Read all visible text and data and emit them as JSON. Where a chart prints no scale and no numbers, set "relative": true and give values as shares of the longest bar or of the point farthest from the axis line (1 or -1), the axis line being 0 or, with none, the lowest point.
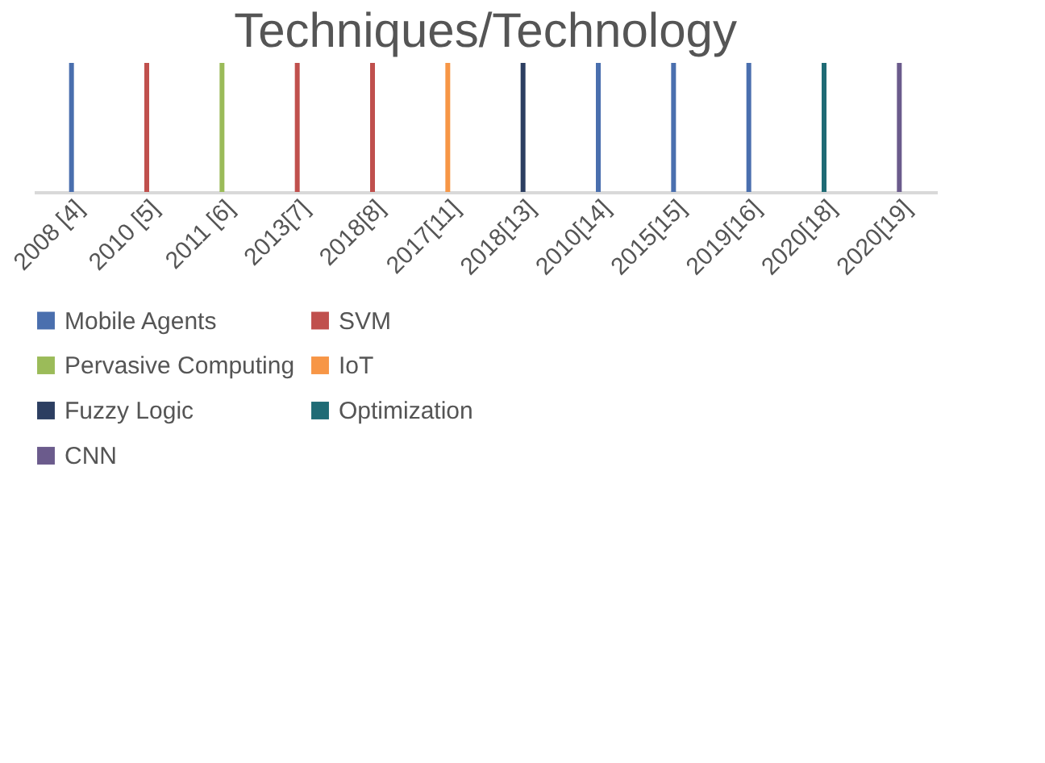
{
  "chart_data": {
    "type": "bar",
    "title": "Techniques/Technology",
    "relative": true,
    "legend": "bottom",
    "categories": [
      "2008 [4]",
      "2010 [5]",
      "2011 [6]",
      "2013[7]",
      "2018[8]",
      "2017[11]",
      "2018[13]",
      "2010[14]",
      "2015[15]",
      "2019[16]",
      "2020[18]",
      "2020[19]"
    ],
    "series": [
      {
        "name": "Mobile Agents",
        "color": "#4a6fae",
        "values": [
          1,
          null,
          null,
          null,
          null,
          null,
          null,
          1,
          1,
          1,
          null,
          null
        ]
      },
      {
        "name": "SVM",
        "color": "#c0504d",
        "values": [
          null,
          1,
          null,
          1,
          1,
          null,
          null,
          null,
          null,
          null,
          null,
          null
        ]
      },
      {
        "name": "Pervasive Computing",
        "color": "#9bbb59",
        "values": [
          null,
          null,
          1,
          null,
          null,
          null,
          null,
          null,
          null,
          null,
          null,
          null
        ]
      },
      {
        "name": "IoT",
        "color": "#f79646",
        "values": [
          null,
          null,
          null,
          null,
          null,
          1,
          null,
          null,
          null,
          null,
          null,
          null
        ]
      },
      {
        "name": "Fuzzy Logic",
        "color": "#2c3e61",
        "values": [
          null,
          null,
          null,
          null,
          null,
          null,
          1,
          null,
          null,
          null,
          null,
          null
        ]
      },
      {
        "name": "Optimization",
        "color": "#1f6b75",
        "values": [
          null,
          null,
          null,
          null,
          null,
          null,
          null,
          null,
          null,
          null,
          1,
          null
        ]
      },
      {
        "name": "CNN",
        "color": "#6b5b8c",
        "values": [
          null,
          null,
          null,
          null,
          null,
          null,
          null,
          null,
          null,
          null,
          null,
          1
        ]
      }
    ]
  }
}
